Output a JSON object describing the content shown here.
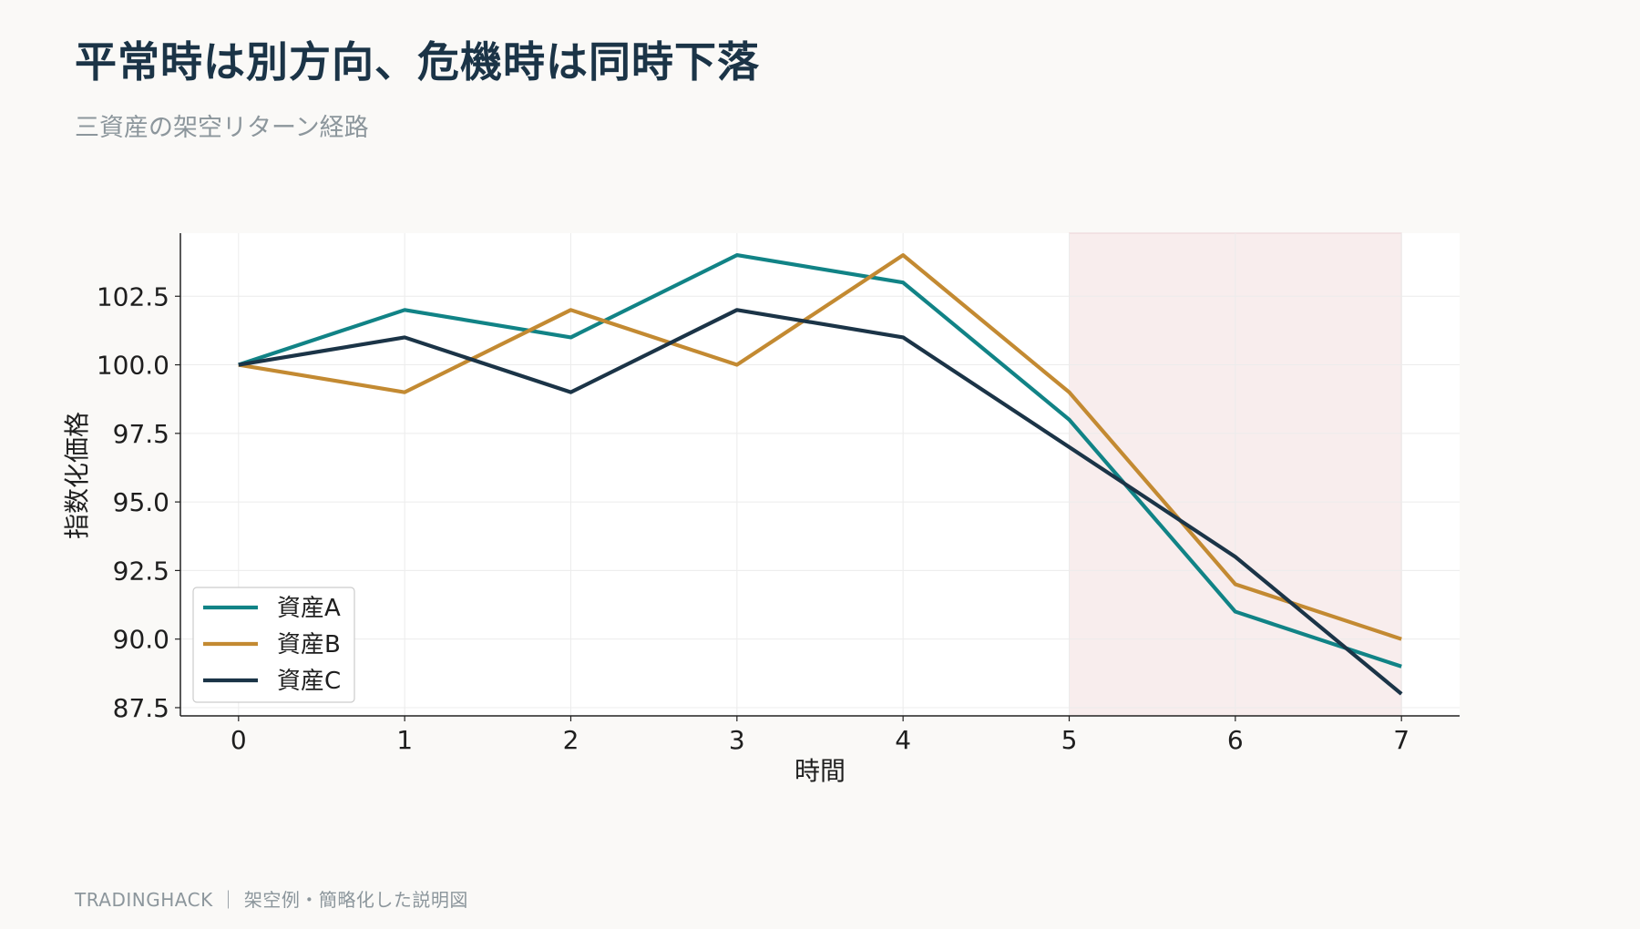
{
  "header": {
    "title": "平常時は別方向、危機時は同時下落",
    "subtitle": "三資産の架空リターン経路"
  },
  "footer": {
    "text": "TRADINGHACK ｜ 架空例・簡略化した説明図"
  },
  "chart_data": {
    "type": "line",
    "title": "",
    "xlabel": "時間",
    "ylabel": "指数化価格",
    "x": [
      0,
      1,
      2,
      3,
      4,
      5,
      6,
      7
    ],
    "x_ticks": [
      "0",
      "1",
      "2",
      "3",
      "4",
      "5",
      "6",
      "7"
    ],
    "y_ticks": [
      "87.5",
      "90.0",
      "92.5",
      "95.0",
      "97.5",
      "100.0",
      "102.5"
    ],
    "ylim": [
      87.2,
      104.8
    ],
    "xlim": [
      -0.35,
      7.35
    ],
    "grid": true,
    "legend_position": "lower-left",
    "shaded_region": {
      "x_start": 5,
      "x_end": 7,
      "color": "#f8eded"
    },
    "series": [
      {
        "name": "資産A",
        "color": "#118386",
        "values": [
          100,
          102,
          101,
          104,
          103,
          98,
          91,
          89
        ]
      },
      {
        "name": "資産B",
        "color": "#c38a32",
        "values": [
          100,
          99,
          102,
          100,
          104,
          99,
          92,
          90
        ]
      },
      {
        "name": "資産C",
        "color": "#1b3447",
        "values": [
          100,
          101,
          99,
          102,
          101,
          97,
          93,
          88
        ]
      }
    ]
  }
}
